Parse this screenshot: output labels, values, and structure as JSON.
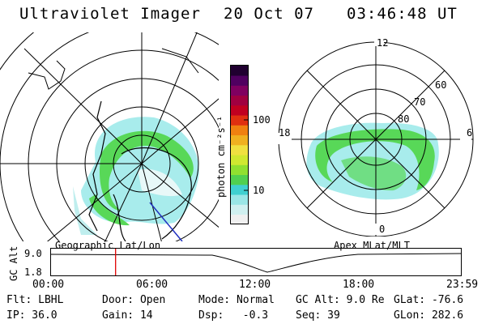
{
  "header": {
    "title": "Ultraviolet Imager",
    "date": "20 Oct 07",
    "time": "03:46:48 UT"
  },
  "maps": {
    "left_caption": "Geographic Lat/Lon",
    "right_caption": "Apex MLat/MLT",
    "right_lat_labels": [
      "80",
      "70",
      "60"
    ],
    "right_mlt_labels": [
      "12",
      "18",
      "6",
      "0"
    ]
  },
  "colorbar": {
    "unit_label": "photon cm⁻²s⁻¹",
    "ticks": [
      "100",
      "10"
    ],
    "colors": [
      "#f0f0f0",
      "#d0f0f0",
      "#9ae6e6",
      "#40d0d0",
      "#50d050",
      "#90e030",
      "#d0e830",
      "#f0e040",
      "#f0b020",
      "#f08010",
      "#e03010",
      "#c00020",
      "#a00040",
      "#800060",
      "#500060",
      "#200030"
    ]
  },
  "timeline": {
    "axis_label": "GC Alt",
    "y_ticks": [
      "9.0",
      "1.8"
    ],
    "x_ticks": [
      "00:00",
      "06:00",
      "12:00",
      "18:00",
      "23:59"
    ],
    "marker_color": "#e00000",
    "marker_fraction": 0.1575
  },
  "footer": {
    "row1": [
      "Flt: LBHL",
      "Door: Open",
      "Mode: Normal",
      "GC Alt: 9.0 Re",
      "GLat: -76.6"
    ],
    "row2": [
      "IP: 36.0",
      "Gain: 14",
      "Dsp:   -0.3",
      "Seq: 39",
      "GLon: 282.6"
    ]
  }
}
